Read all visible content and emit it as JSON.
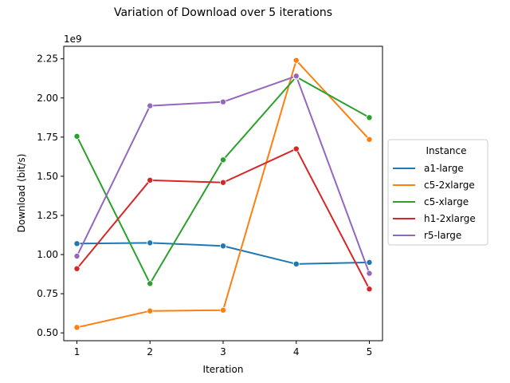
{
  "chart_data": {
    "type": "line",
    "title": "Variation of Download over 5 iterations",
    "xlabel": "Iteration",
    "ylabel": "Download (bit/s)",
    "y_offset_label": "1e9",
    "x": [
      1,
      2,
      3,
      4,
      5
    ],
    "xlim": [
      0.82,
      5.18
    ],
    "ylim": [
      0.45,
      2.33
    ],
    "yticks": [
      0.5,
      0.75,
      1.0,
      1.25,
      1.5,
      1.75,
      2.0,
      2.25
    ],
    "ytick_labels": [
      "0.50",
      "0.75",
      "1.00",
      "1.25",
      "1.50",
      "1.75",
      "2.00",
      "2.25"
    ],
    "xtick_labels": [
      "1",
      "2",
      "3",
      "4",
      "5"
    ],
    "grid": false,
    "legend": {
      "title": "Instance",
      "placement": "center-right-outside"
    },
    "series": [
      {
        "name": "a1-large",
        "color": "#1f77b4",
        "values": [
          1.07,
          1.075,
          1.055,
          0.94,
          0.95
        ]
      },
      {
        "name": "c5-2xlarge",
        "color": "#ff7f0e",
        "values": [
          0.535,
          0.64,
          0.645,
          2.24,
          1.735
        ]
      },
      {
        "name": "c5-xlarge",
        "color": "#2ca02c",
        "values": [
          1.755,
          0.815,
          1.605,
          2.135,
          1.875
        ]
      },
      {
        "name": "h1-2xlarge",
        "color": "#d62728",
        "values": [
          0.91,
          1.475,
          1.46,
          1.675,
          0.78
        ]
      },
      {
        "name": "r5-large",
        "color": "#9467bd",
        "values": [
          0.99,
          1.95,
          1.975,
          2.14,
          0.88
        ]
      }
    ]
  }
}
